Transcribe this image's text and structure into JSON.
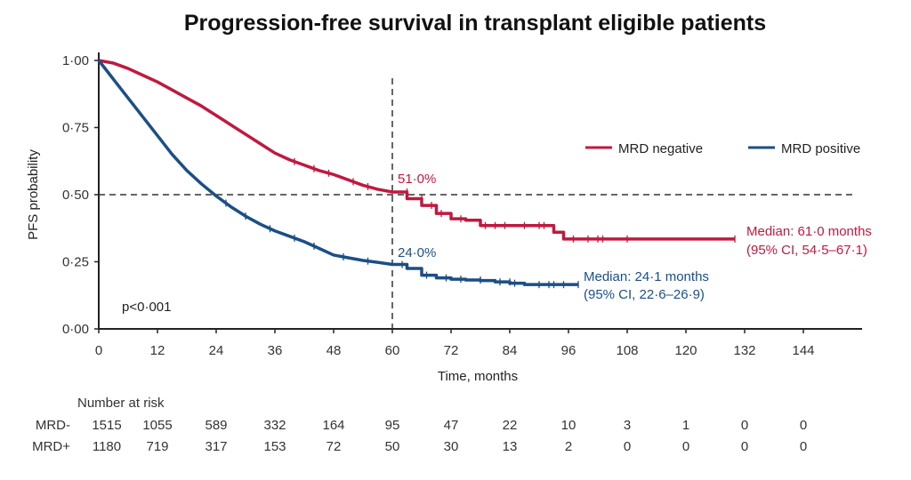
{
  "chart_data": {
    "type": "line",
    "subtype": "kaplan-meier",
    "title": "Progression-free survival in transplant eligible patients",
    "xlabel": "Time, months",
    "ylabel": "PFS probability",
    "xlim": [
      0,
      156
    ],
    "ylim": [
      0,
      1
    ],
    "x_ticks": [
      0,
      12,
      24,
      36,
      48,
      60,
      72,
      84,
      96,
      108,
      120,
      132,
      144
    ],
    "x_tick_labels": [
      "0",
      "12",
      "24",
      "36",
      "48",
      "60",
      "72",
      "84",
      "96",
      "108",
      "120",
      "132",
      "144"
    ],
    "y_ticks": [
      0,
      0.25,
      0.5,
      0.75,
      1.0
    ],
    "y_tick_labels": [
      "0·00",
      "0·25",
      "0·50",
      "0·75",
      "1·00"
    ],
    "grid": false,
    "legend_position": "right",
    "reference_lines": {
      "horizontal_y": 0.5,
      "vertical_x": 60
    },
    "series": [
      {
        "name": "MRD negative",
        "short": "MRD-",
        "color": "#c0193f",
        "x": [
          0,
          3,
          6,
          9,
          12,
          15,
          18,
          21,
          24,
          27,
          30,
          33,
          36,
          39,
          42,
          45,
          48,
          51,
          54,
          57,
          60,
          63,
          66,
          69,
          72,
          75,
          78,
          81,
          84,
          87,
          90,
          92,
          93,
          95,
          100,
          110,
          120,
          130
        ],
        "y": [
          1.0,
          0.99,
          0.97,
          0.945,
          0.92,
          0.89,
          0.86,
          0.83,
          0.795,
          0.76,
          0.725,
          0.69,
          0.655,
          0.63,
          0.61,
          0.59,
          0.575,
          0.555,
          0.535,
          0.52,
          0.51,
          0.485,
          0.46,
          0.43,
          0.41,
          0.405,
          0.385,
          0.385,
          0.385,
          0.385,
          0.385,
          0.385,
          0.36,
          0.335,
          0.335,
          0.335,
          0.335,
          0.335
        ],
        "censor_x": [
          40,
          44,
          47,
          52,
          55,
          63,
          66,
          68,
          70,
          74,
          79,
          81,
          83,
          87,
          90,
          91,
          97,
          100,
          102,
          103,
          108,
          130
        ],
        "annotation_at_60": "51·0%",
        "median_text": "Median: 61·0 months",
        "ci_text": "(95% CI, 54·5–67·1)"
      },
      {
        "name": "MRD positive",
        "short": "MRD+",
        "color": "#1b4f86",
        "x": [
          0,
          3,
          6,
          9,
          12,
          15,
          18,
          21,
          24,
          27,
          30,
          33,
          36,
          39,
          42,
          45,
          48,
          51,
          54,
          57,
          60,
          63,
          66,
          69,
          72,
          75,
          78,
          81,
          84,
          87,
          90,
          93,
          96,
          98
        ],
        "y": [
          1.0,
          0.93,
          0.86,
          0.79,
          0.72,
          0.65,
          0.59,
          0.54,
          0.495,
          0.455,
          0.42,
          0.39,
          0.365,
          0.345,
          0.325,
          0.3,
          0.275,
          0.265,
          0.255,
          0.248,
          0.24,
          0.225,
          0.2,
          0.19,
          0.185,
          0.182,
          0.18,
          0.175,
          0.17,
          0.165,
          0.165,
          0.165,
          0.165,
          0.165
        ],
        "censor_x": [
          26,
          30,
          35,
          40,
          44,
          50,
          55,
          62,
          67,
          71,
          74,
          78,
          82,
          84,
          85,
          90,
          92,
          93,
          95,
          98
        ],
        "annotation_at_60": "24·0%",
        "median_text": "Median: 24·1 months",
        "ci_text": "(95% CI, 22·6–26·9)"
      }
    ],
    "p_value": "p<0·001",
    "number_at_risk": {
      "label": "Number at risk",
      "times": [
        0,
        12,
        24,
        36,
        48,
        60,
        72,
        84,
        96,
        108,
        120,
        132,
        144
      ],
      "rows": [
        {
          "label": "MRD-",
          "color": "#c0193f",
          "values": [
            1515,
            1055,
            589,
            332,
            164,
            95,
            47,
            22,
            10,
            3,
            1,
            0,
            0
          ]
        },
        {
          "label": "MRD+",
          "color": "#1b4f86",
          "values": [
            1180,
            719,
            317,
            153,
            72,
            50,
            30,
            13,
            2,
            0,
            0,
            0,
            0
          ]
        }
      ]
    }
  }
}
